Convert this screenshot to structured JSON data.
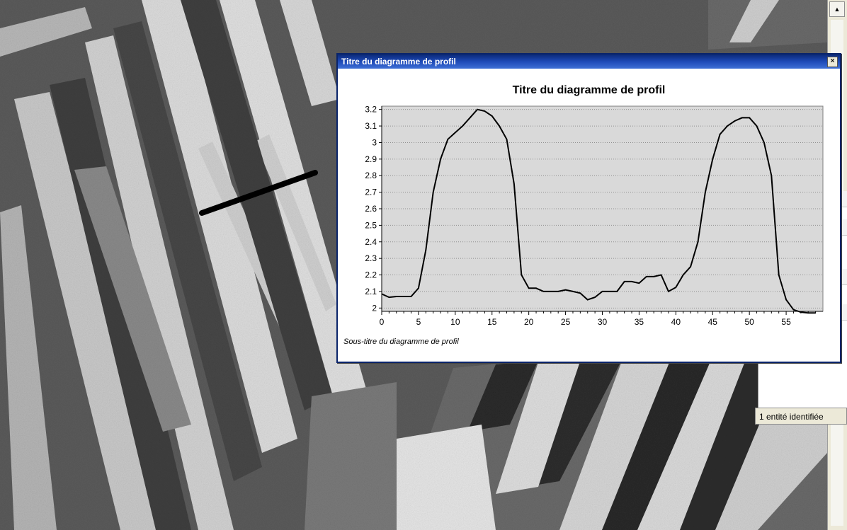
{
  "window": {
    "title": "Titre du diagramme de profil",
    "close_symbol": "×"
  },
  "status_bar": {
    "text": "1 entité identifiée"
  },
  "scrollbar": {
    "up_arrow_symbol": "▲"
  },
  "colors": {
    "titlebar": "#0b2a78",
    "plot_background": "#d9d9d9",
    "series_line": "#000000",
    "profile_line": "#000000"
  },
  "chart_data": {
    "type": "line",
    "title": "Titre du diagramme de profil",
    "subtitle": "Sous-titre du diagramme de profil",
    "xlabel": "",
    "ylabel": "",
    "xlim": [
      0,
      60
    ],
    "ylim": [
      1.98,
      3.22
    ],
    "x_ticks": [
      "0",
      "5",
      "10",
      "15",
      "20",
      "25",
      "30",
      "35",
      "40",
      "45",
      "50",
      "55"
    ],
    "y_ticks": [
      "3.2",
      "3.1",
      "3",
      "2.9",
      "2.8",
      "2.7",
      "2.6",
      "2.5",
      "2.4",
      "2.3",
      "2.2",
      "2.1",
      "2"
    ],
    "grid": "horizontal dotted",
    "x": [
      0,
      1,
      2,
      3,
      4,
      5,
      6,
      7,
      8,
      9,
      10,
      11,
      12,
      13,
      14,
      15,
      16,
      17,
      18,
      19,
      20,
      21,
      22,
      23,
      24,
      25,
      26,
      27,
      28,
      29,
      30,
      31,
      32,
      33,
      34,
      35,
      36,
      37,
      38,
      39,
      40,
      41,
      42,
      43,
      44,
      45,
      46,
      47,
      48,
      49,
      50,
      51,
      52,
      53,
      54,
      55,
      56,
      57,
      58,
      59
    ],
    "values": [
      2.085,
      2.065,
      2.07,
      2.07,
      2.07,
      2.12,
      2.35,
      2.7,
      2.9,
      3.02,
      3.06,
      3.1,
      3.15,
      3.2,
      3.19,
      3.16,
      3.1,
      3.02,
      2.75,
      2.2,
      2.12,
      2.12,
      2.1,
      2.1,
      2.1,
      2.11,
      2.1,
      2.09,
      2.05,
      2.065,
      2.1,
      2.1,
      2.1,
      2.16,
      2.16,
      2.15,
      2.19,
      2.19,
      2.2,
      2.1,
      2.125,
      2.2,
      2.25,
      2.4,
      2.7,
      2.9,
      3.05,
      3.1,
      3.13,
      3.15,
      3.15,
      3.1,
      3.0,
      2.8,
      2.2,
      2.05,
      1.99,
      1.975,
      1.97,
      1.97
    ]
  }
}
